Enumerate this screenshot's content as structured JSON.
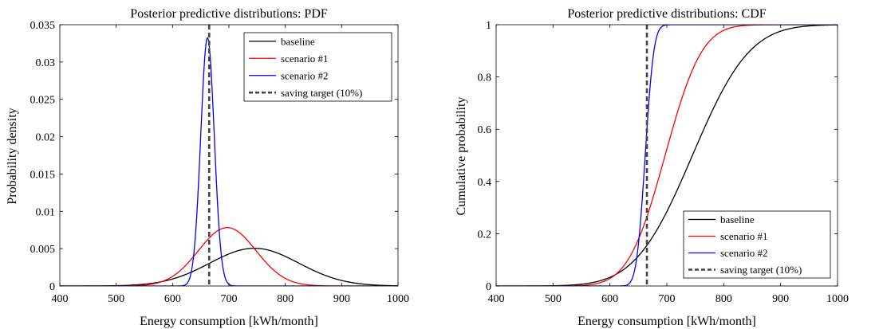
{
  "chart_data": [
    {
      "type": "line",
      "title": "Posterior predictive distributions: PDF",
      "xlabel": "Energy consumption [kWh/month]",
      "ylabel": "Probability density",
      "xlim": [
        400,
        1000
      ],
      "ylim": [
        0,
        0.035
      ],
      "x_ticks": [
        "400",
        "500",
        "600",
        "700",
        "800",
        "900",
        "1000"
      ],
      "y_ticks": [
        "0",
        "0.005",
        "0.01",
        "0.015",
        "0.02",
        "0.025",
        "0.03",
        "0.035"
      ],
      "grid": false,
      "legend_position": "top-right",
      "series": [
        {
          "name": "baseline",
          "color": "#000000",
          "dist": "normal",
          "mean": 745,
          "sd": 79
        },
        {
          "name": "scenario #1",
          "color": "#ff0000",
          "dist": "normal",
          "mean": 697,
          "sd": 51
        },
        {
          "name": "scenario #2",
          "color": "#0000ff",
          "dist": "normal",
          "mean": 662,
          "sd": 12
        }
      ],
      "reference_line": {
        "name": "saving target (10%)",
        "x": 665,
        "color": "#444444",
        "style": "dashed"
      }
    },
    {
      "type": "line",
      "title": "Posterior predictive distributions: CDF",
      "xlabel": "Energy consumption [kWh/month]",
      "ylabel": "Cumulative probability",
      "xlim": [
        400,
        1000
      ],
      "ylim": [
        0,
        1
      ],
      "x_ticks": [
        "400",
        "500",
        "600",
        "700",
        "800",
        "900",
        "1000"
      ],
      "y_ticks": [
        "0",
        "0.2",
        "0.4",
        "0.6",
        "0.8",
        "1"
      ],
      "grid": false,
      "legend_position": "bottom-right",
      "series": [
        {
          "name": "baseline",
          "color": "#000000",
          "dist": "normal",
          "mean": 745,
          "sd": 79
        },
        {
          "name": "scenario #1",
          "color": "#ff0000",
          "dist": "normal",
          "mean": 697,
          "sd": 51
        },
        {
          "name": "scenario #2",
          "color": "#0000ff",
          "dist": "normal",
          "mean": 662,
          "sd": 12
        }
      ],
      "reference_line": {
        "name": "saving target (10%)",
        "x": 665,
        "color": "#444444",
        "style": "dashed"
      }
    }
  ]
}
